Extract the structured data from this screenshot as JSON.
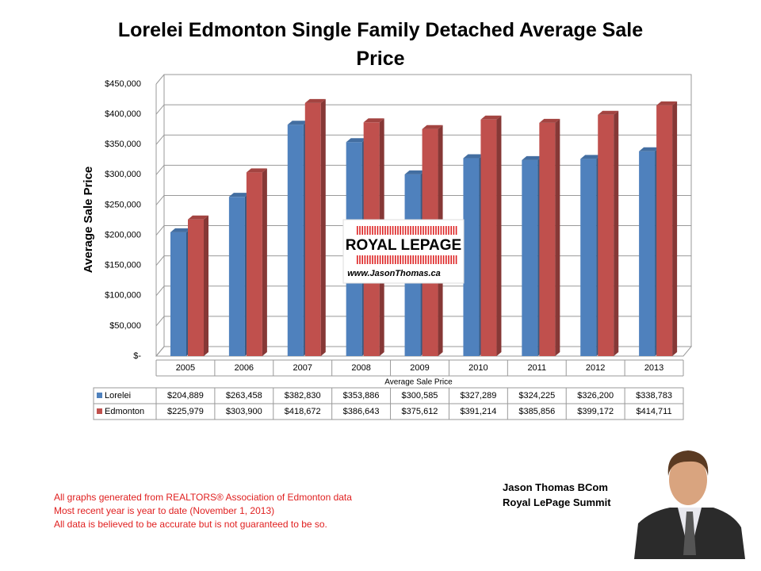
{
  "chart_data": {
    "type": "bar",
    "title": "Lorelei Edmonton Single Family Detached Average Sale Price",
    "y_axis_label": "Average Sale Price",
    "x_axis_label": "Average Sale Price",
    "categories": [
      "2005",
      "2006",
      "2007",
      "2008",
      "2009",
      "2010",
      "2011",
      "2012",
      "2013"
    ],
    "series": [
      {
        "name": "Lorelei",
        "color": "#4f81bd",
        "values": [
          204889,
          263458,
          382830,
          353886,
          300585,
          327289,
          324225,
          326200,
          338783
        ],
        "value_labels": [
          "$204,889",
          "$263,458",
          "$382,830",
          "$353,886",
          "$300,585",
          "$327,289",
          "$324,225",
          "$326,200",
          "$338,783"
        ]
      },
      {
        "name": "Edmonton",
        "color": "#c0504d",
        "values": [
          225979,
          303900,
          418672,
          386643,
          375612,
          391214,
          385856,
          399172,
          414711
        ],
        "value_labels": [
          "$225,979",
          "$303,900",
          "$418,672",
          "$386,643",
          "$375,612",
          "$391,214",
          "$385,856",
          "$399,172",
          "$414,711"
        ]
      }
    ],
    "ylim": [
      0,
      450000
    ],
    "yticks": [
      {
        "value": 0,
        "label": "$-"
      },
      {
        "value": 50000,
        "label": "$50,000"
      },
      {
        "value": 100000,
        "label": "$100,000"
      },
      {
        "value": 150000,
        "label": "$150,000"
      },
      {
        "value": 200000,
        "label": "$200,000"
      },
      {
        "value": 250000,
        "label": "$250,000"
      },
      {
        "value": 300000,
        "label": "$300,000"
      },
      {
        "value": 350000,
        "label": "$350,000"
      },
      {
        "value": 400000,
        "label": "$400,000"
      },
      {
        "value": 450000,
        "label": "$450,000"
      }
    ],
    "grid": true
  },
  "logo": {
    "brand": "ROYAL LEPAGE",
    "url": "www.JasonThomas.ca"
  },
  "footnotes": [
    "All graphs generated from REALTORS® Association of Edmonton data",
    "Most recent year is year to date (November 1, 2013)",
    "All data is believed to be accurate but is not guaranteed to be so."
  ],
  "author": {
    "name": "Jason Thomas BCom",
    "company": "Royal LePage Summit"
  }
}
